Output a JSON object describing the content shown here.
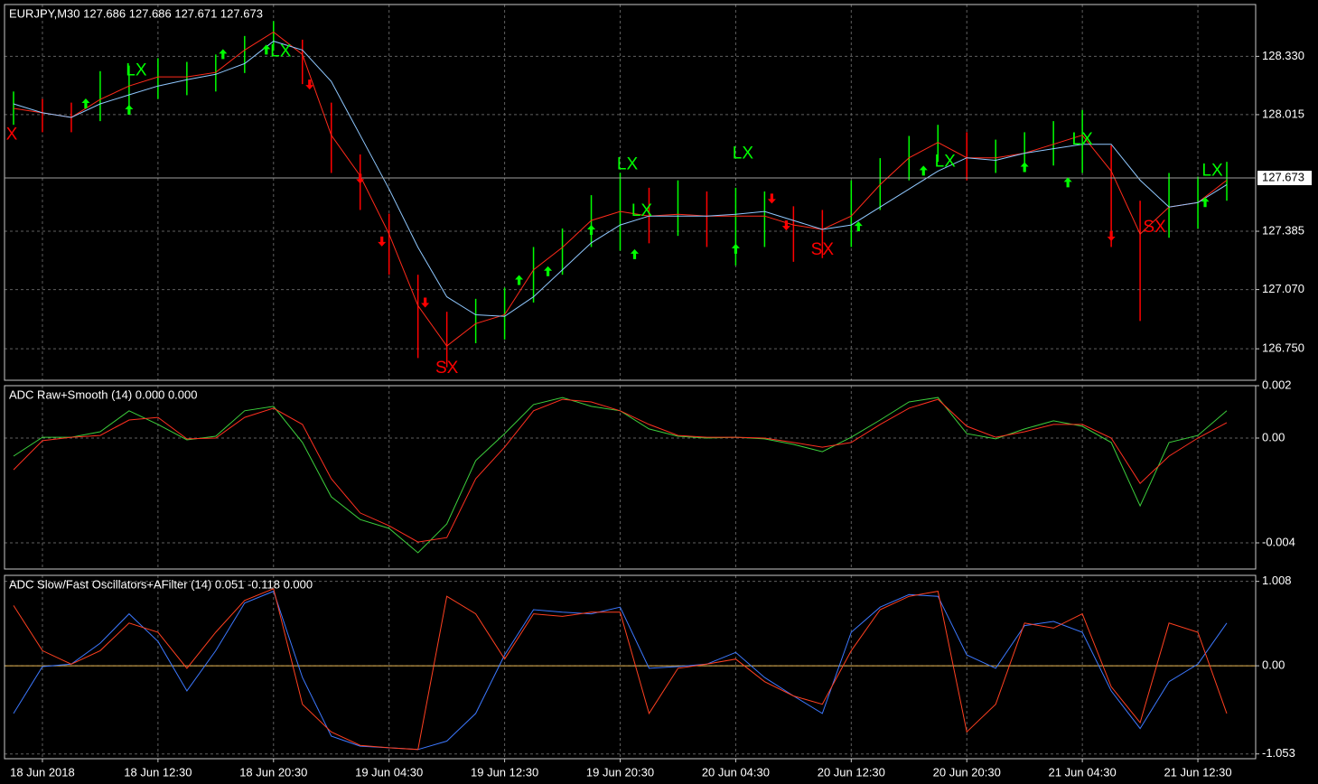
{
  "chart_data": [
    {
      "type": "ohlc",
      "title": "EURJPY,M30  127.686 127.686 127.671 127.673",
      "x": [
        -4,
        0,
        4,
        8,
        12,
        16,
        20,
        24,
        28,
        32,
        36,
        40,
        44,
        48,
        52,
        56,
        60,
        64,
        68,
        72,
        76,
        80,
        84,
        88,
        92,
        96,
        100,
        104,
        108,
        112,
        116,
        120,
        124,
        128,
        132,
        136,
        140,
        144,
        148,
        152,
        156,
        160,
        164
      ],
      "xlim": [
        -5.25,
        168
      ],
      "ylim": [
        126.58,
        128.61
      ],
      "yticks": [
        {
          "value": 128.33,
          "label": "128.330"
        },
        128.015,
        127.385,
        {
          "value": 127.07,
          "label": "127.070"
        },
        {
          "value": 126.75,
          "label": "126.750"
        }
      ],
      "grid": true,
      "up_color": "#00ff00",
      "down_color": "#ff0000",
      "high": [
        128.14,
        128.1,
        128.08,
        128.25,
        128.28,
        128.32,
        128.3,
        128.34,
        128.44,
        128.52,
        128.42,
        128.08,
        127.8,
        127.48,
        127.15,
        126.95,
        127.02,
        127.08,
        127.3,
        127.4,
        127.58,
        127.7,
        127.62,
        127.66,
        127.6,
        127.62,
        127.6,
        127.52,
        127.5,
        127.66,
        127.78,
        127.9,
        127.96,
        127.92,
        127.88,
        127.92,
        127.98,
        128.04,
        127.85,
        127.55,
        127.7,
        127.68,
        127.76
      ],
      "low": [
        127.96,
        127.92,
        127.92,
        127.98,
        128.05,
        128.1,
        128.12,
        128.14,
        128.24,
        128.36,
        128.18,
        127.7,
        127.5,
        127.15,
        126.7,
        126.65,
        126.78,
        126.8,
        127.0,
        127.15,
        127.3,
        127.28,
        127.32,
        127.36,
        127.3,
        127.2,
        127.3,
        127.22,
        127.24,
        127.3,
        127.5,
        127.66,
        127.76,
        127.66,
        127.7,
        127.72,
        127.74,
        127.7,
        127.3,
        126.9,
        127.35,
        127.4,
        127.55
      ],
      "series": [
        {
          "color": "#ff2a1a",
          "values": [
            128.049,
            128.025,
            128.0,
            128.097,
            128.17,
            128.219,
            128.219,
            128.243,
            128.364,
            128.461,
            128.34,
            127.904,
            127.685,
            127.37,
            126.983,
            126.765,
            126.886,
            126.934,
            127.177,
            127.298,
            127.443,
            127.492,
            127.467,
            127.477,
            127.467,
            127.467,
            127.467,
            127.419,
            127.395,
            127.467,
            127.637,
            127.782,
            127.865,
            127.782,
            127.782,
            127.807,
            127.855,
            127.904,
            127.71,
            127.37,
            127.516,
            127.54,
            127.661
          ]
        },
        {
          "color": "#8fc8ff",
          "values": [
            128.073,
            128.025,
            128.0,
            128.073,
            128.122,
            128.17,
            128.204,
            128.233,
            128.291,
            128.412,
            128.364,
            128.194,
            127.904,
            127.613,
            127.298,
            127.031,
            126.934,
            126.925,
            127.031,
            127.177,
            127.322,
            127.419,
            127.467,
            127.467,
            127.467,
            127.477,
            127.492,
            127.443,
            127.395,
            127.419,
            127.516,
            127.613,
            127.71,
            127.782,
            127.768,
            127.807,
            127.831,
            127.855,
            127.855,
            127.661,
            127.516,
            127.54,
            127.637
          ]
        }
      ],
      "last_price": {
        "value": 127.673,
        "label": "127.673"
      },
      "labels": [
        {
          "text": "X",
          "x": -4.25,
          "y": 127.904,
          "color": "#ff0000"
        },
        {
          "text": "LX",
          "x": 13,
          "y": 128.252,
          "color": "#00ff00"
        },
        {
          "text": "LX",
          "x": 33,
          "y": 128.354,
          "color": "#00ff00"
        },
        {
          "text": "SX",
          "x": 56,
          "y": 126.644,
          "color": "#ff0000"
        },
        {
          "text": "LX",
          "x": 81,
          "y": 127.744,
          "color": "#00ff00"
        },
        {
          "text": "LX",
          "x": 83,
          "y": 127.492,
          "color": "#00ff00"
        },
        {
          "text": "LX",
          "x": 97,
          "y": 127.802,
          "color": "#00ff00"
        },
        {
          "text": "SX",
          "x": 108,
          "y": 127.283,
          "color": "#ff0000"
        },
        {
          "text": "LX",
          "x": 125,
          "y": 127.758,
          "color": "#00ff00"
        },
        {
          "text": "LX",
          "x": 144,
          "y": 127.879,
          "color": "#00ff00"
        },
        {
          "text": "SX",
          "x": 154,
          "y": 127.404,
          "color": "#ff0000"
        },
        {
          "text": "LX",
          "x": 162,
          "y": 127.71,
          "color": "#00ff00"
        }
      ],
      "up_arrows": {
        "color": "#00ff00",
        "x": [
          6,
          12,
          25,
          31,
          66,
          70,
          76,
          82,
          96,
          113,
          122,
          136,
          142,
          161
        ],
        "y": [
          128.073,
          128.039,
          128.34,
          128.364,
          127.119,
          127.167,
          127.39,
          127.259,
          127.288,
          127.409,
          127.71,
          127.729,
          127.647,
          127.54
        ]
      },
      "down_arrows": {
        "color": "#ff0000",
        "x": [
          37,
          44,
          47,
          53,
          101,
          103,
          148
        ],
        "y": [
          128.18,
          127.671,
          127.332,
          127.002,
          127.564,
          127.419,
          127.361
        ]
      }
    },
    {
      "type": "line",
      "title": "ADC Raw+Smooth (14) 0.000 0.000",
      "x": [
        -4,
        0,
        4,
        8,
        12,
        16,
        20,
        24,
        28,
        32,
        36,
        40,
        44,
        48,
        52,
        56,
        60,
        64,
        68,
        72,
        76,
        80,
        84,
        88,
        92,
        96,
        100,
        104,
        108,
        112,
        116,
        120,
        124,
        128,
        132,
        136,
        140,
        144,
        148,
        152,
        156,
        160,
        164
      ],
      "xlim": [
        -5.25,
        168
      ],
      "ylim": [
        -0.005,
        0.002
      ],
      "yticks": [
        0.002,
        {
          "value": 0,
          "label": "0.00"
        },
        -0.004
      ],
      "grid": true,
      "series": [
        {
          "color": "#3ccf3c",
          "values": [
            -0.00069,
            3e-05,
            3e-05,
            0.00024,
            0.00104,
            0.00052,
            -7e-05,
            7e-05,
            0.00104,
            0.00121,
            -0.00017,
            -0.00224,
            -0.00311,
            -0.00345,
            -0.00438,
            -0.00328,
            -0.00086,
            0.00017,
            0.00128,
            0.00155,
            0.00121,
            0.00104,
            0.00035,
            7e-05,
            0,
            3e-05,
            -3e-05,
            -0.00024,
            -0.00052,
            3e-05,
            0.00069,
            0.00138,
            0.00155,
            0.00017,
            -3e-05,
            0.00035,
            0.00066,
            0.00045,
            -0.00017,
            -0.00259,
            -0.00017,
            0.0001,
            0.00104
          ]
        },
        {
          "color": "#ff3020",
          "values": [
            -0.00121,
            -0.0001,
            3e-05,
            0.0001,
            0.00069,
            0.00079,
            -3e-05,
            0,
            0.00079,
            0.00114,
            0.00052,
            -0.00155,
            -0.00286,
            -0.00335,
            -0.00397,
            -0.0038,
            -0.00155,
            -0.00035,
            0.00104,
            0.00148,
            0.00138,
            0.00104,
            0.00052,
            0.0001,
            3e-05,
            3e-05,
            0,
            -0.00017,
            -0.00035,
            -0.00017,
            0.00052,
            0.00114,
            0.00148,
            0.00045,
            3e-05,
            0.00024,
            0.00052,
            0.00052,
            0,
            -0.00173,
            -0.00069,
            0,
            0.00059
          ]
        }
      ]
    },
    {
      "type": "line",
      "title": "ADC Slow/Fast Oscillators+AFilter (14) 0.051 -0.118 0.000",
      "x": [
        -4,
        0,
        4,
        8,
        12,
        16,
        20,
        24,
        28,
        32,
        36,
        40,
        44,
        48,
        52,
        56,
        60,
        64,
        68,
        72,
        76,
        80,
        84,
        88,
        92,
        96,
        100,
        104,
        108,
        112,
        116,
        120,
        124,
        128,
        132,
        136,
        140,
        144,
        148,
        152,
        156,
        160,
        164
      ],
      "xlim": [
        -5.25,
        168
      ],
      "ylim": [
        -1.11,
        1.08
      ],
      "yticks": [
        1.008,
        {
          "value": 0,
          "label": "0.00"
        },
        -1.053
      ],
      "grid": true,
      "zero_line_color": "#e6b450",
      "xticks": [
        {
          "value": 0,
          "label": "18 Jun 2018"
        },
        {
          "value": 16,
          "label": "18 Jun 12:30"
        },
        {
          "value": 32,
          "label": "18 Jun 20:30"
        },
        {
          "value": 48,
          "label": "19 Jun 04:30"
        },
        {
          "value": 64,
          "label": "19 Jun 12:30"
        },
        {
          "value": 80,
          "label": "19 Jun 20:30"
        },
        {
          "value": 96,
          "label": "20 Jun 04:30"
        },
        {
          "value": 112,
          "label": "20 Jun 12:30"
        },
        {
          "value": 128,
          "label": "20 Jun 20:30"
        },
        {
          "value": 144,
          "label": "21 Jun 04:30"
        },
        {
          "value": 160,
          "label": "21 Jun 12:30"
        }
      ],
      "series": [
        {
          "color": "#3c78ff",
          "values": [
            -0.57,
            -0.01,
            0.02,
            0.27,
            0.62,
            0.29,
            -0.3,
            0.18,
            0.75,
            0.89,
            -0.14,
            -0.84,
            -0.96,
            -0.98,
            -1.0,
            -0.9,
            -0.57,
            0.13,
            0.67,
            0.64,
            0.62,
            0.7,
            -0.03,
            -0.01,
            0.02,
            0.16,
            -0.14,
            -0.36,
            -0.57,
            0.4,
            0.7,
            0.85,
            0.83,
            0.13,
            -0.03,
            0.48,
            0.53,
            0.4,
            -0.3,
            -0.75,
            -0.19,
            0.02,
            0.51
          ]
        },
        {
          "color": "#ff4020",
          "values": [
            0.72,
            0.18,
            0.02,
            0.18,
            0.51,
            0.4,
            -0.03,
            0.4,
            0.78,
            0.92,
            -0.46,
            -0.79,
            -0.95,
            -0.98,
            -1.0,
            0.83,
            0.62,
            0.08,
            0.62,
            0.59,
            0.64,
            0.64,
            -0.57,
            -0.03,
            0.02,
            0.08,
            -0.19,
            -0.36,
            -0.46,
            0.18,
            0.67,
            0.83,
            0.89,
            -0.79,
            -0.46,
            0.51,
            0.45,
            0.62,
            -0.25,
            -0.68,
            0.51,
            0.4,
            -0.57
          ]
        }
      ]
    }
  ]
}
